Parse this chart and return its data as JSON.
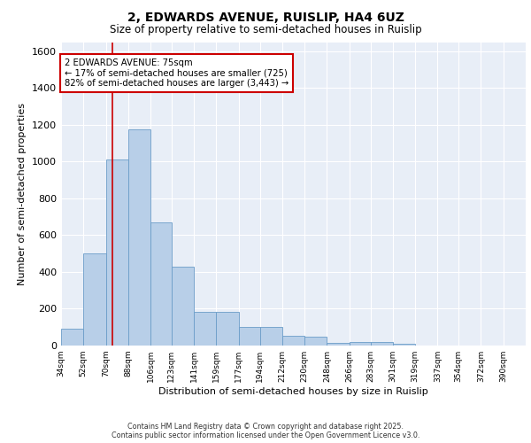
{
  "title": "2, EDWARDS AVENUE, RUISLIP, HA4 6UZ",
  "subtitle": "Size of property relative to semi-detached houses in Ruislip",
  "xlabel": "Distribution of semi-detached houses by size in Ruislip",
  "ylabel": "Number of semi-detached properties",
  "categories": [
    "34sqm",
    "52sqm",
    "70sqm",
    "88sqm",
    "106sqm",
    "123sqm",
    "141sqm",
    "159sqm",
    "177sqm",
    "194sqm",
    "212sqm",
    "230sqm",
    "248sqm",
    "266sqm",
    "283sqm",
    "301sqm",
    "319sqm",
    "337sqm",
    "354sqm",
    "372sqm",
    "390sqm"
  ],
  "bin_edges": [
    34,
    52,
    70,
    88,
    106,
    123,
    141,
    159,
    177,
    194,
    212,
    230,
    248,
    266,
    283,
    301,
    319,
    337,
    354,
    372,
    390
  ],
  "values": [
    90,
    500,
    1010,
    1175,
    670,
    430,
    185,
    185,
    100,
    100,
    55,
    50,
    15,
    20,
    20,
    10,
    2,
    2,
    2,
    1,
    1
  ],
  "bar_color": "#b8cfe8",
  "bar_edge_color": "#6b9dc8",
  "property_value": 75,
  "red_line_color": "#cc0000",
  "annotation_text": "2 EDWARDS AVENUE: 75sqm\n← 17% of semi-detached houses are smaller (725)\n82% of semi-detached houses are larger (3,443) →",
  "annotation_box_color": "#ffffff",
  "annotation_box_edge": "#cc0000",
  "ylim": [
    0,
    1650
  ],
  "yticks": [
    0,
    200,
    400,
    600,
    800,
    1000,
    1200,
    1400,
    1600
  ],
  "bg_color": "#e8eef7",
  "footer_line1": "Contains HM Land Registry data © Crown copyright and database right 2025.",
  "footer_line2": "Contains public sector information licensed under the Open Government Licence v3.0."
}
